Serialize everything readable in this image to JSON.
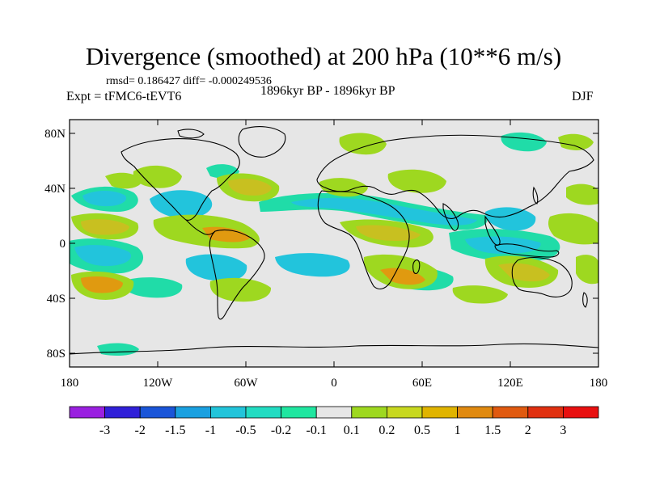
{
  "title": "Divergence (smoothed) at 200 hPa (10**6 m/s)",
  "stats": "rmsd= 0.186427  diff= -0.000249536",
  "experiment": "Expt = tFMC6-tEVT6",
  "period": "1896kyr BP - 1896kyr BP",
  "season": "DJF",
  "y_axis": {
    "labels": [
      "80N",
      "40N",
      "0",
      "40S",
      "80S"
    ],
    "values": [
      80,
      40,
      0,
      -40,
      -80
    ]
  },
  "x_axis": {
    "labels": [
      "180",
      "120W",
      "60W",
      "0",
      "60E",
      "120E",
      "180"
    ],
    "values": [
      -180,
      -120,
      -60,
      0,
      60,
      120,
      180
    ]
  },
  "colorbar": {
    "labels": [
      "-3",
      "-2",
      "-1.5",
      "-1",
      "-0.5",
      "-0.2",
      "-0.1",
      "0.1",
      "0.2",
      "0.5",
      "1",
      "1.5",
      "2",
      "3"
    ],
    "colors": [
      "#9a20e0",
      "#3020d8",
      "#1a55d8",
      "#1aa0e0",
      "#22c4da",
      "#22dcc2",
      "#20e6a0",
      "#e6e6e6",
      "#9ed820",
      "#c8d820",
      "#e0b400",
      "#e08a10",
      "#e05a10",
      "#e03010",
      "#e81010"
    ]
  },
  "colors": {
    "neutral": "#e6e6e6",
    "positive_weak": "#9ed820",
    "positive_mid": "#c8c020",
    "positive_strong": "#e09a10",
    "negative_weak": "#20dca8",
    "negative_mid": "#22c4dc",
    "negative_strong": "#1aa6e0"
  }
}
